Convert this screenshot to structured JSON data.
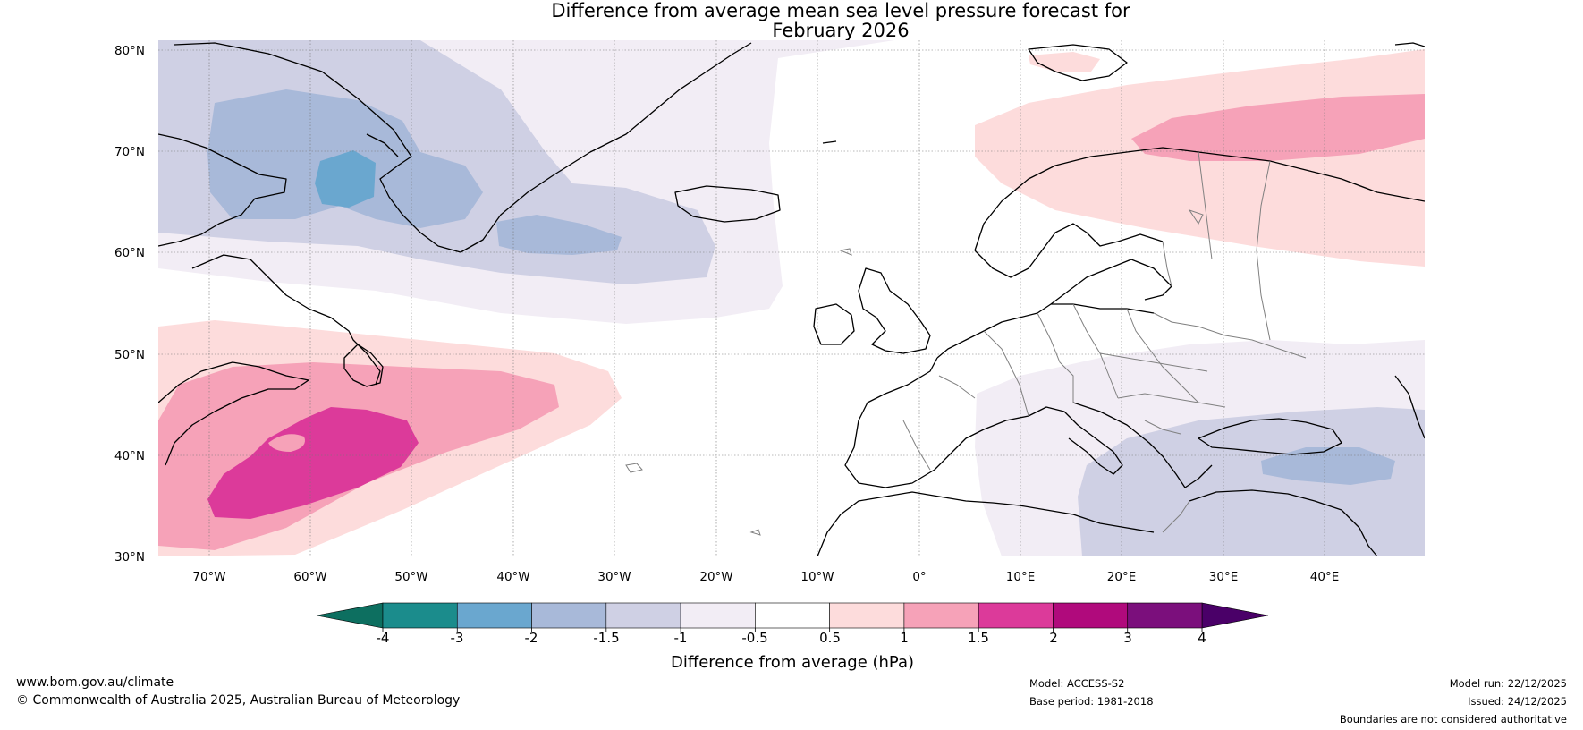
{
  "title": {
    "line1": "Difference from average mean sea level pressure forecast for",
    "line2": "February 2026"
  },
  "map": {
    "lat_labels": [
      "80°N",
      "70°N",
      "60°N",
      "50°N",
      "40°N",
      "30°N"
    ],
    "lon_labels": [
      "70°W",
      "60°W",
      "50°W",
      "40°W",
      "30°W",
      "20°W",
      "10°W",
      "0°",
      "10°E",
      "20°E",
      "30°E",
      "40°E"
    ],
    "extent": {
      "lon_min": -75,
      "lon_max": 50,
      "lat_min": 30,
      "lat_max": 81
    }
  },
  "colorbar": {
    "title": "Difference from average (hPa)",
    "tick_labels": [
      "-4",
      "-3",
      "-2",
      "-1.5",
      "-1",
      "-0.5",
      "0.5",
      "1",
      "1.5",
      "2",
      "3",
      "4"
    ],
    "colors": [
      "#1b8c8c",
      "#6aa7cf",
      "#a8b9d9",
      "#cfd0e4",
      "#f2edf5",
      "#ffffff",
      "#fddcdc",
      "#f6a2b8",
      "#dc3a9a",
      "#b00a7c",
      "#7b0f7c"
    ],
    "under_color": "#0d6f60",
    "over_color": "#4a0068"
  },
  "footer": {
    "website": "www.bom.gov.au/climate",
    "copyright": "© Commonwealth of Australia 2025, Australian Bureau of Meteorology",
    "model": "Model: ACCESS-S2",
    "base_period": "Base period: 1981-2018",
    "model_run": "Model run: 22/12/2025",
    "issued": "Issued: 24/12/2025",
    "disclaimer": "Boundaries are not considered authoritative"
  }
}
